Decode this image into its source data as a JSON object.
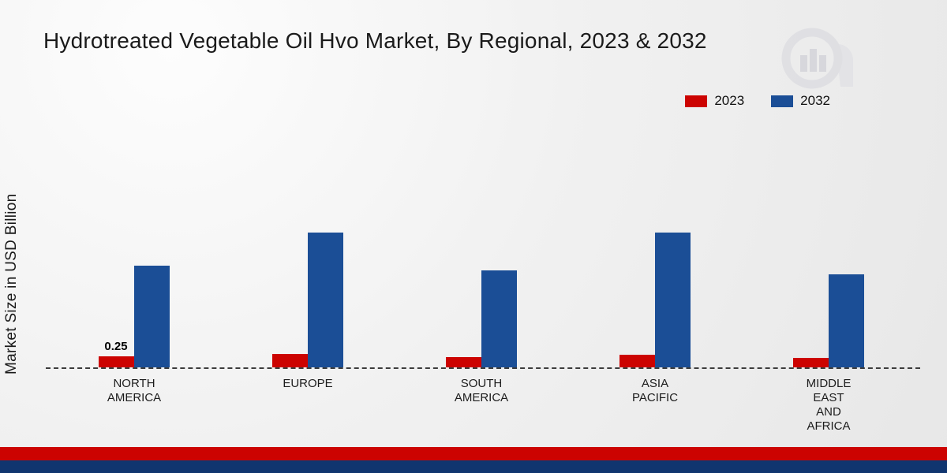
{
  "title": "Hydrotreated Vegetable Oil Hvo Market, By Regional, 2023 & 2032",
  "ylabel": "Market Size in USD Billion",
  "legend": [
    {
      "label": "2023",
      "color": "#cc0301"
    },
    {
      "label": "2032",
      "color": "#1b4e96"
    }
  ],
  "chart_data": {
    "type": "bar",
    "categories": [
      "NORTH AMERICA",
      "EUROPE",
      "SOUTH AMERICA",
      "ASIA PACIFIC",
      "MIDDLE EAST AND AFRICA"
    ],
    "series": [
      {
        "name": "2023",
        "color": "#cc0301",
        "values": [
          0.25,
          0.3,
          0.23,
          0.28,
          0.21
        ]
      },
      {
        "name": "2032",
        "color": "#1b4e96",
        "values": [
          2.3,
          3.05,
          2.2,
          3.05,
          2.1
        ]
      }
    ],
    "annotations": [
      {
        "series": "2023",
        "category": "NORTH AMERICA",
        "text": "0.25"
      }
    ],
    "title": "Hydrotreated Vegetable Oil Hvo Market, By Regional, 2023 & 2032",
    "xlabel": "",
    "ylabel": "Market Size in USD Billion",
    "ylim": [
      0,
      3.5
    ],
    "grid": false,
    "legend_position": "top-right",
    "baseline_style": "dashed"
  },
  "footer": {
    "red_bar_color": "#cc0301",
    "navy_bar_color": "#10356f"
  }
}
